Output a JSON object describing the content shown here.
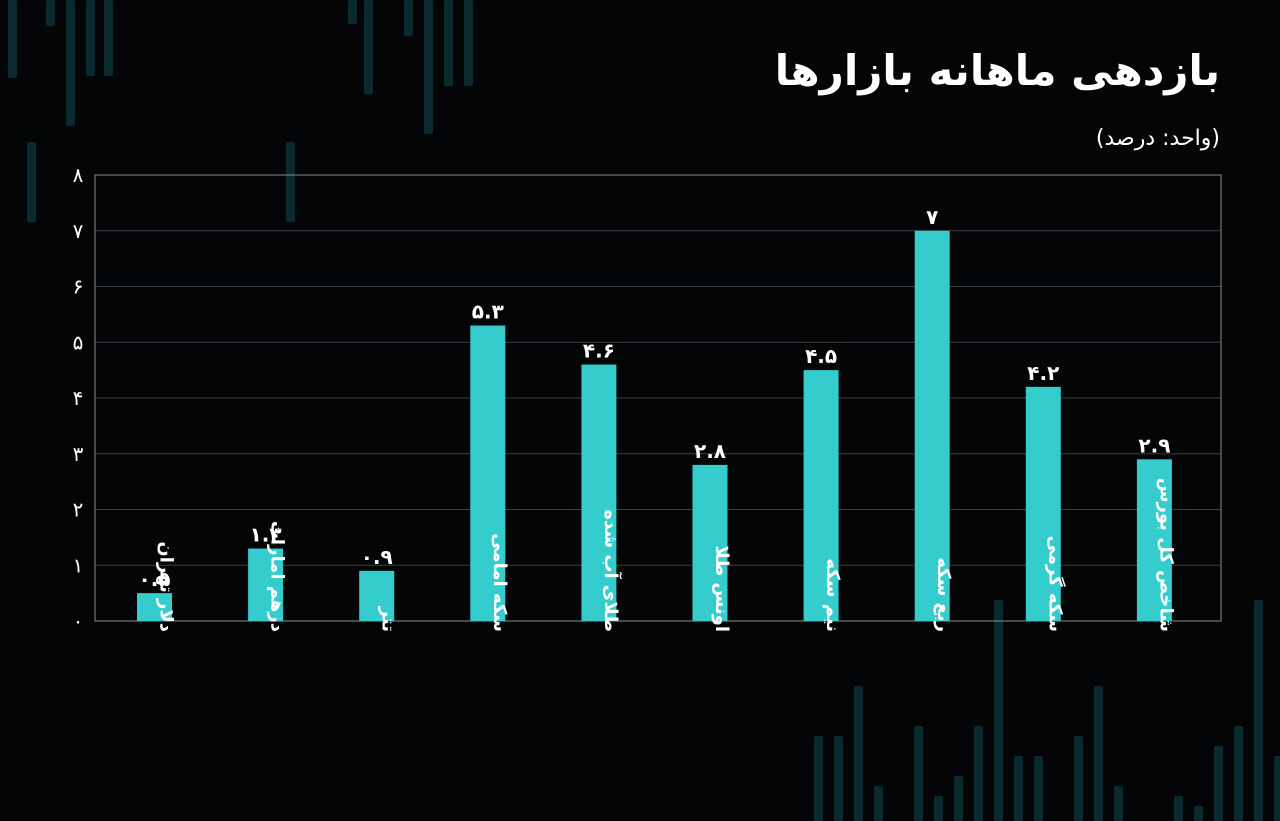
{
  "header": {
    "title": "بازدهی ماهانه بازارها",
    "unit": "(واحد: درصد)"
  },
  "colors": {
    "background": "#040506",
    "bar": "#35cccd",
    "decor": "#0b2a30"
  },
  "chart_data": {
    "type": "bar",
    "categories": [
      "دلار تهران",
      "درهم امارات",
      "تتر",
      "سکه امامی",
      "طلای آب شده",
      "اونس طلا",
      "نیم سکه",
      "ربع سکه",
      "سکه گرمی",
      "شاخص کل بورس"
    ],
    "values": [
      0.5,
      1.3,
      0.9,
      5.3,
      4.6,
      2.8,
      4.5,
      7,
      4.2,
      2.9
    ],
    "value_labels": [
      "۰.۵",
      "۱.۳",
      "۰.۹",
      "۵.۳",
      "۴.۶",
      "۲.۸",
      "۴.۵",
      "۷",
      "۴.۲",
      "۲.۹"
    ],
    "ytick_values": [
      0,
      1,
      2,
      3,
      4,
      5,
      6,
      7,
      8
    ],
    "ytick_labels": [
      "۰",
      "۱",
      "۲",
      "۳",
      "۴",
      "۵",
      "۶",
      "۷",
      "۸"
    ],
    "ylim": [
      0,
      8
    ],
    "grid": true,
    "legend": "none"
  }
}
